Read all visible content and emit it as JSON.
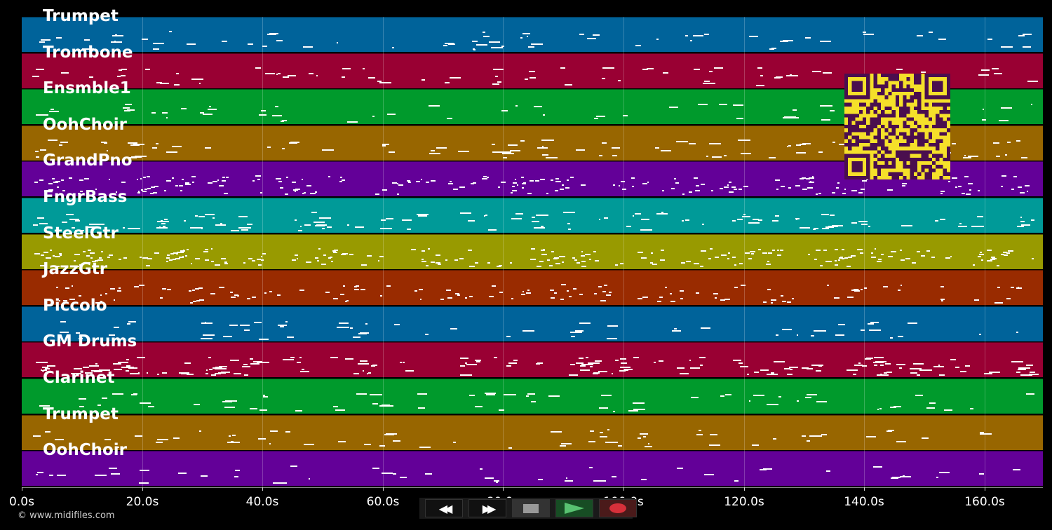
{
  "tracks": [
    {
      "name": "Trumpet",
      "color": "#00639a"
    },
    {
      "name": "Trombone",
      "color": "#990033"
    },
    {
      "name": "Ensmble1",
      "color": "#009a2c"
    },
    {
      "name": "OohChoir",
      "color": "#986600"
    },
    {
      "name": "GrandPno",
      "color": "#630098"
    },
    {
      "name": "FngrBass",
      "color": "#009a98"
    },
    {
      "name": "SteelGtr",
      "color": "#989a00"
    },
    {
      "name": "JazzGtr",
      "color": "#992b00"
    },
    {
      "name": "Piccolo",
      "color": "#00639a"
    },
    {
      "name": "GM Drums",
      "color": "#990033"
    },
    {
      "name": "Clarinet",
      "color": "#009a2c"
    },
    {
      "name": "Trumpet",
      "color": "#986600"
    },
    {
      "name": "OohChoir",
      "color": "#630098"
    }
  ],
  "time_axis": {
    "ticks": [
      "0.0s",
      "20.0s",
      "40.0s",
      "60.0s",
      "80.0s",
      "100.0s",
      "120.0s",
      "140.0s",
      "160.0s"
    ]
  },
  "credit": "© www.midifiles.com",
  "controls": [
    {
      "name": "rewind-button",
      "icon": "rewind-icon",
      "glyph": "◀◀"
    },
    {
      "name": "fast-forward-button",
      "icon": "fast-forward-icon",
      "glyph": "▶▶"
    },
    {
      "name": "stop-button",
      "icon": "stop-icon"
    },
    {
      "name": "play-button",
      "icon": "play-icon"
    },
    {
      "name": "record-button",
      "icon": "record-icon"
    }
  ],
  "qr_code": {
    "icon": "qr-code-icon",
    "fg": "#4a0e4e",
    "bg": "#f5e02a"
  }
}
